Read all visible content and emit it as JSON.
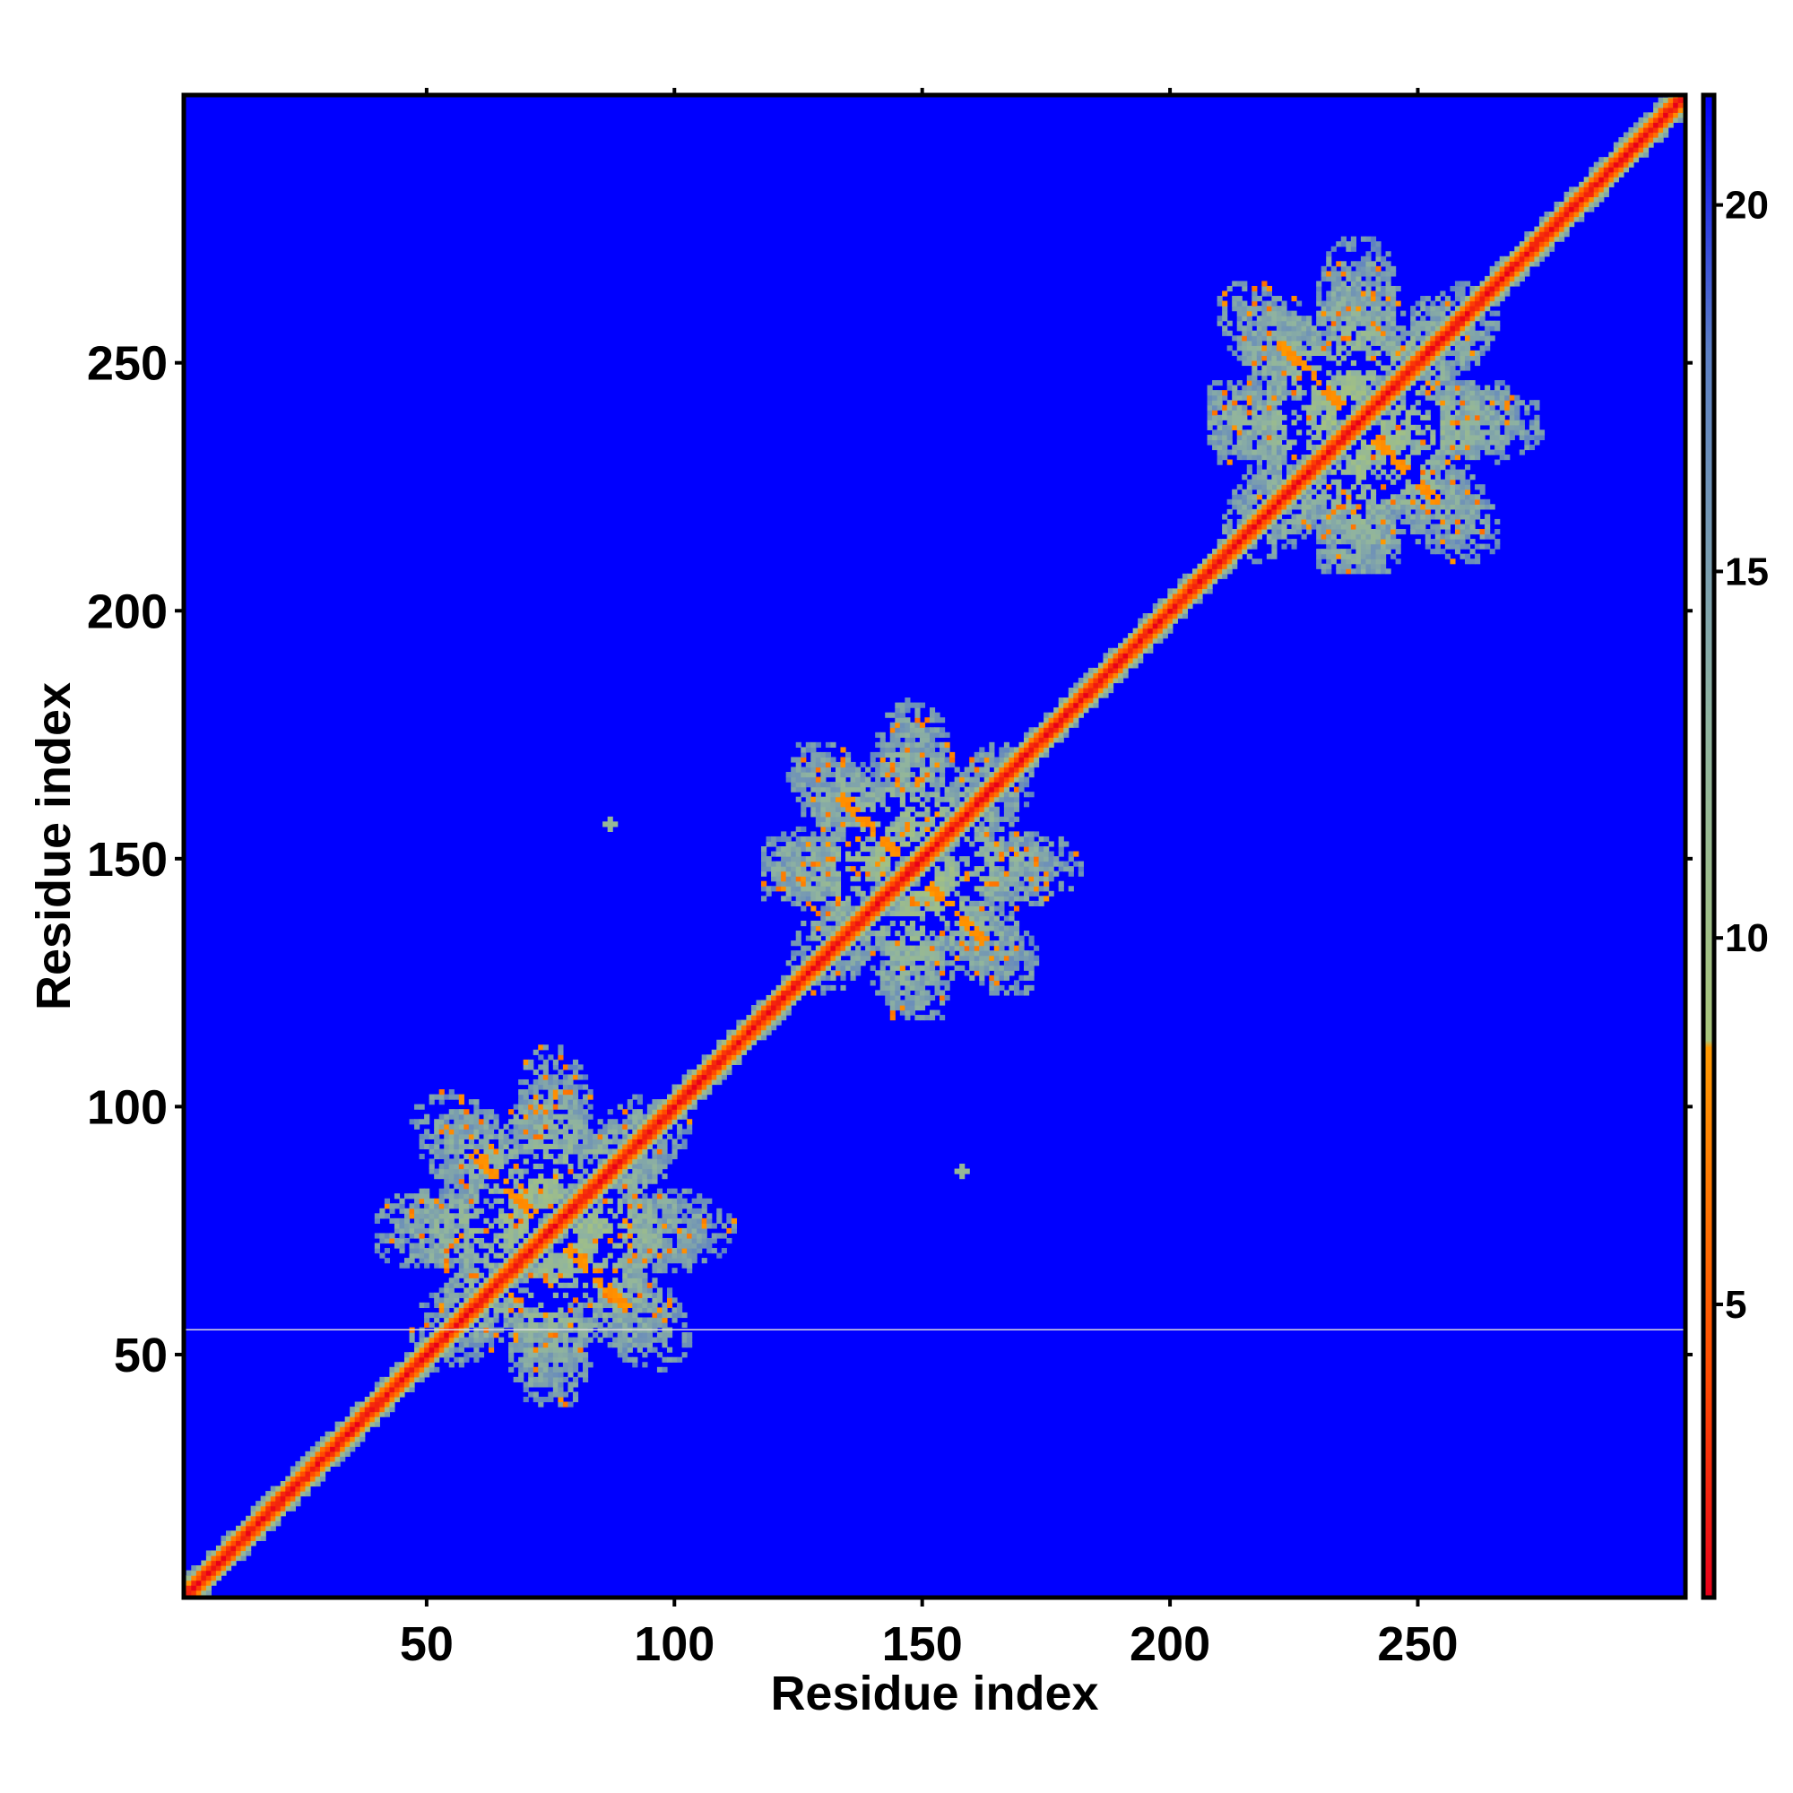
{
  "chart_data": {
    "type": "heatmap",
    "xlabel": "Residue index",
    "ylabel": "Residue index",
    "xlim": [
      1,
      304
    ],
    "ylim": [
      1,
      304
    ],
    "x_ticks": [
      50,
      100,
      150,
      200,
      250
    ],
    "y_ticks": [
      50,
      100,
      150,
      200,
      250
    ],
    "colorbar": {
      "range": [
        1,
        21.5
      ],
      "ticks": [
        5,
        10,
        15,
        20
      ],
      "stops": [
        {
          "value": 1,
          "color": "#e8001a"
        },
        {
          "value": 4,
          "color": "#ff4a00"
        },
        {
          "value": 8.5,
          "color": "#ff9900"
        },
        {
          "value": 8.6,
          "color": "#a8c47a"
        },
        {
          "value": 13,
          "color": "#8fb3a0"
        },
        {
          "value": 18,
          "color": "#5c7fc4"
        },
        {
          "value": 21.5,
          "color": "#0000ff"
        }
      ]
    },
    "background_color": "#0000ff",
    "domains": [
      {
        "start": 40,
        "end": 115,
        "center": 75
      },
      {
        "start": 118,
        "end": 187,
        "center": 148
      },
      {
        "start": 208,
        "end": 284,
        "center": 238
      }
    ],
    "isolated_contacts": [
      [
        87,
        157
      ],
      [
        158,
        87
      ]
    ],
    "row_marker": 55
  }
}
